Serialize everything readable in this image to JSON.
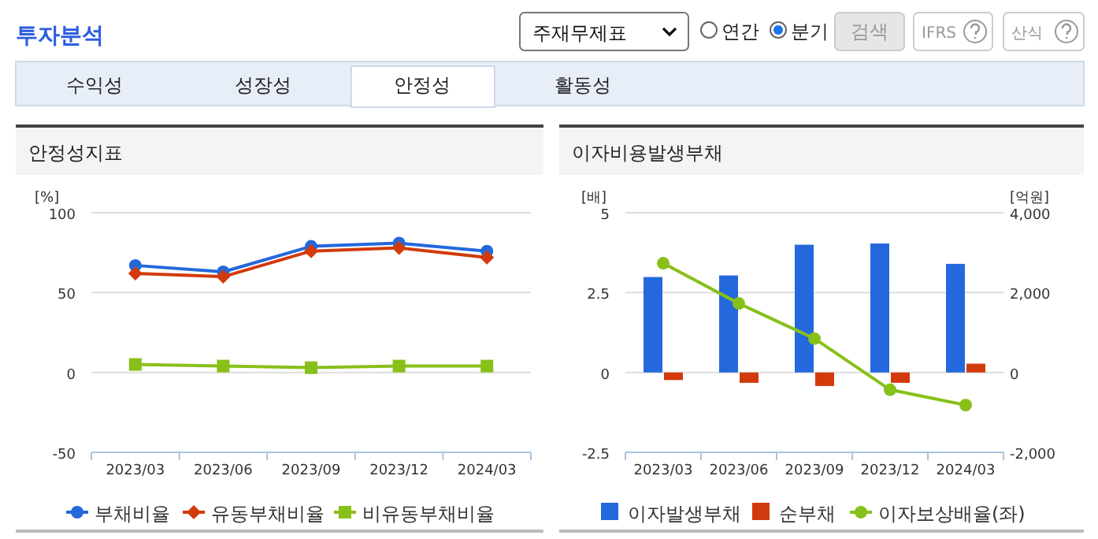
{
  "chart_data": [
    {
      "type": "line",
      "title": "안정성지표",
      "ylabel": "[%]",
      "categories": [
        "2023/03",
        "2023/06",
        "2023/09",
        "2023/12",
        "2024/03"
      ],
      "series": [
        {
          "name": "부채비율",
          "color": "#2468dc",
          "marker": "circle",
          "values": [
            67,
            63,
            79,
            81,
            76
          ]
        },
        {
          "name": "유동부채비율",
          "color": "#d23a0c",
          "marker": "diamond",
          "values": [
            62,
            60,
            76,
            78,
            72
          ]
        },
        {
          "name": "비유동부채비율",
          "color": "#88c01a",
          "marker": "square",
          "values": [
            5,
            4,
            3,
            4,
            4
          ]
        }
      ],
      "ylim": [
        -50,
        100
      ],
      "yticks": [
        -50,
        0,
        50,
        100
      ],
      "grid": "y",
      "legend": "bottom",
      "annotations": [
        "투자분석",
        "주재무제표",
        "연간",
        "분기",
        "검색",
        "IFRS",
        "산식",
        "수익성",
        "성장성",
        "안정성",
        "활동성"
      ]
    },
    {
      "type": "bar",
      "title": "이자비용발생부채",
      "ylabel": "[배]",
      "y2label": "[억원]",
      "categories": [
        "2023/03",
        "2023/06",
        "2023/09",
        "2023/12",
        "2024/03"
      ],
      "series": [
        {
          "name": "이자발생부채",
          "color": "#2468dc",
          "axis": "y2",
          "values": [
            2390,
            2430,
            3200,
            3230,
            2720
          ]
        },
        {
          "name": "순부채",
          "color": "#d23a0c",
          "axis": "y2",
          "values": [
            -190,
            -260,
            -340,
            -260,
            220
          ]
        },
        {
          "name": "이자보상배율(좌)",
          "type": "line",
          "color": "#88c01a",
          "marker": "circle",
          "values": [
            3.42,
            2.16,
            1.06,
            -0.54,
            -1.02
          ]
        }
      ],
      "ylim": [
        -2.5,
        5
      ],
      "yticks": [
        -2.5,
        0,
        2.5,
        5
      ],
      "y2lim": [
        -2000,
        4000
      ],
      "y2ticks": [
        {
          "value": -2000,
          "label": "-2,000"
        },
        0,
        {
          "value": 2000,
          "label": "2,000"
        },
        {
          "value": 4000,
          "label": "4,000"
        }
      ],
      "grid": "y",
      "legend": "bottom"
    }
  ]
}
